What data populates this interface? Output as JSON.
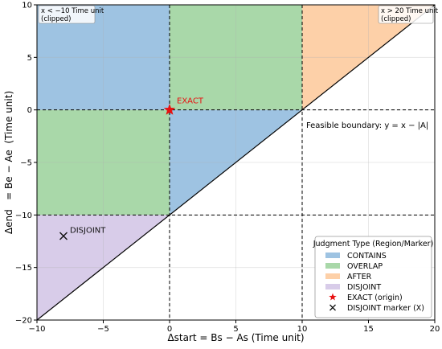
{
  "chart_data": {
    "type": "area",
    "title": "",
    "xlabel": "Δstart = Bs − As  (Time unit)",
    "ylabel": "Δend   = Be − Ae  (Time unit)",
    "xlim": [
      -10,
      20
    ],
    "ylim": [
      -20,
      10
    ],
    "xticks": [
      -10,
      -5,
      0,
      5,
      10,
      15,
      20
    ],
    "yticks": [
      -20,
      -15,
      -10,
      -5,
      0,
      5,
      10
    ],
    "grid": true,
    "regions": [
      {
        "name": "CONTAINS",
        "color": "#9ec3e2",
        "polygons": [
          [
            [
              -10,
              0
            ],
            [
              0,
              0
            ],
            [
              0,
              10
            ],
            [
              -10,
              10
            ]
          ],
          [
            [
              0,
              -10
            ],
            [
              10,
              0
            ],
            [
              0,
              0
            ]
          ]
        ]
      },
      {
        "name": "OVERLAP",
        "color": "#a9d8a9",
        "polygons": [
          [
            [
              -10,
              -10
            ],
            [
              0,
              -10
            ],
            [
              0,
              0
            ],
            [
              -10,
              0
            ]
          ],
          [
            [
              0,
              0
            ],
            [
              10,
              0
            ],
            [
              10,
              10
            ],
            [
              0,
              10
            ]
          ]
        ]
      },
      {
        "name": "AFTER",
        "color": "#fdd0a8",
        "polygons": [
          [
            [
              10,
              0
            ],
            [
              20,
              10
            ],
            [
              10,
              10
            ]
          ]
        ]
      },
      {
        "name": "DISJOINT",
        "color": "#d8cce9",
        "polygons": [
          [
            [
              -10,
              -20
            ],
            [
              0,
              -10
            ],
            [
              -10,
              -10
            ]
          ]
        ]
      }
    ],
    "boundary": {
      "label": "Feasible boundary: y = x − |A|",
      "x": [
        -10,
        20
      ],
      "y": [
        -20,
        10
      ]
    },
    "dashed_lines": {
      "vertical": [
        0,
        10
      ],
      "horizontal": [
        0,
        -10
      ]
    },
    "markers": [
      {
        "name": "EXACT",
        "label": "EXACT",
        "x": 0,
        "y": 0,
        "symbol": "star",
        "color": "#e81010"
      },
      {
        "name": "DISJOINT",
        "label": "DISJOINT",
        "x": -8,
        "y": -12,
        "symbol": "x",
        "color": "#111111"
      }
    ],
    "corner_notes": [
      "x < −10 Time unit\n(clipped)",
      "x > 20 Time unit\n(clipped)"
    ],
    "legend": {
      "title": "Judgment Type (Region/Marker)",
      "position": "lower-right",
      "entries": [
        {
          "label": "CONTAINS",
          "kind": "patch",
          "color": "#9ec3e2"
        },
        {
          "label": "OVERLAP",
          "kind": "patch",
          "color": "#a9d8a9"
        },
        {
          "label": "AFTER",
          "kind": "patch",
          "color": "#fdd0a8"
        },
        {
          "label": "DISJOINT",
          "kind": "patch",
          "color": "#d8cce9"
        },
        {
          "label": "EXACT (origin)",
          "kind": "star",
          "color": "#e81010"
        },
        {
          "label": "DISJOINT marker (X)",
          "kind": "x",
          "color": "#111111"
        }
      ]
    }
  }
}
